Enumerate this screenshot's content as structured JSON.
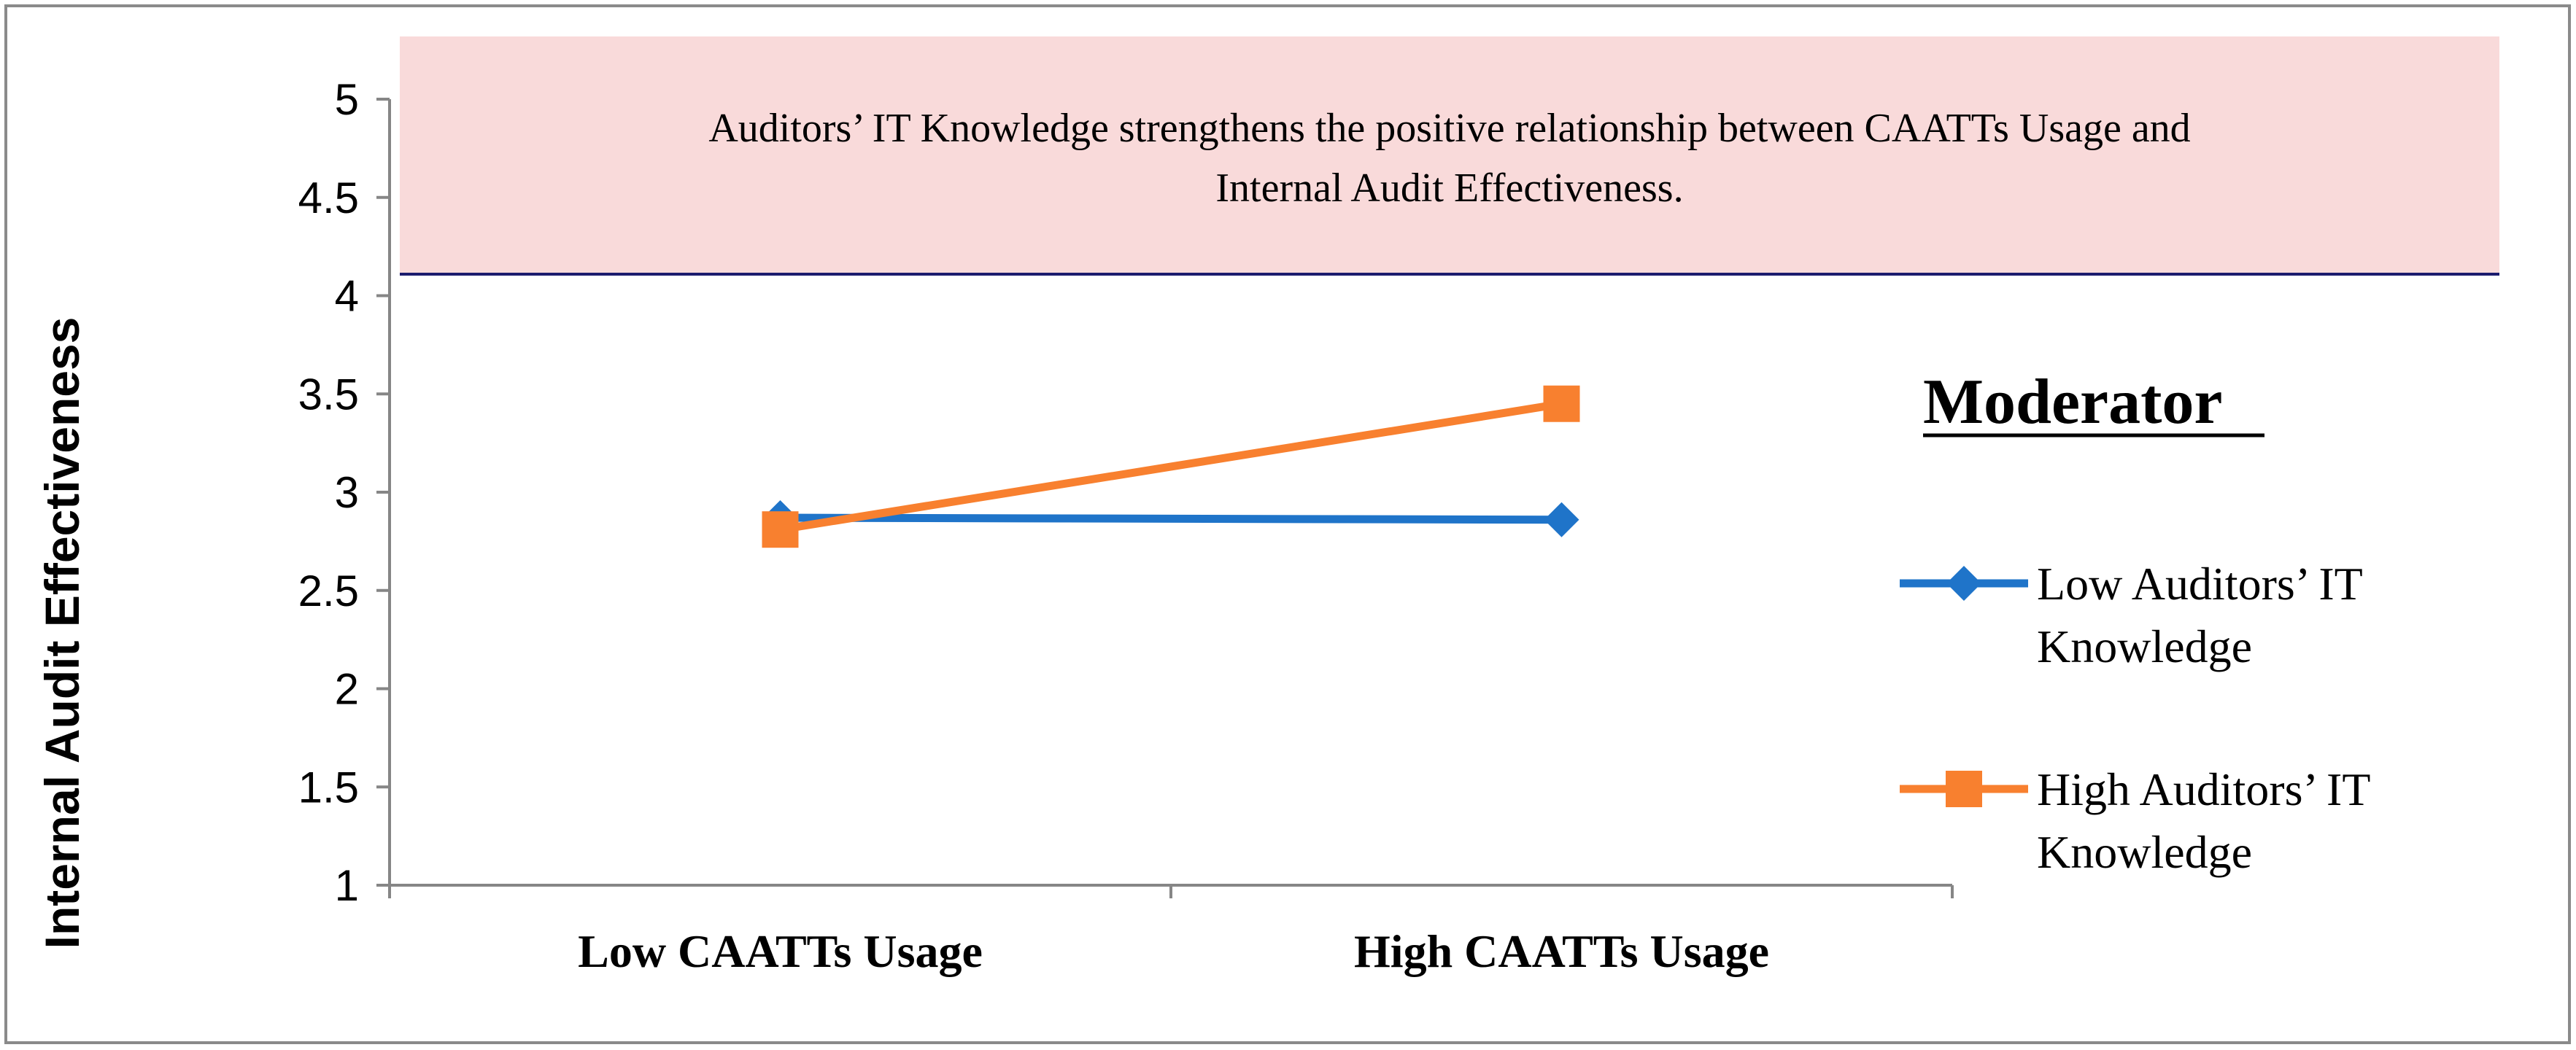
{
  "chart_data": {
    "type": "line",
    "title": "",
    "xlabel": "",
    "ylabel": "Internal Audit Effectiveness",
    "categories": [
      "Low CAATTs Usage",
      "High CAATTs Usage"
    ],
    "ylim": [
      1,
      5
    ],
    "yticks": [
      "1",
      "1.5",
      "2",
      "2.5",
      "3",
      "3.5",
      "4",
      "4.5",
      "5"
    ],
    "grid": false,
    "legend": {
      "title": "Moderator",
      "placement": "right",
      "entries": [
        [
          "Low Auditors’ IT",
          "Knowledge"
        ],
        [
          "High Auditors’ IT",
          "Knowledge"
        ]
      ]
    },
    "series": [
      {
        "name": "Low Auditors’ IT Knowledge",
        "values": [
          2.87,
          2.86
        ],
        "color": "#1F74C9",
        "marker": "diamond"
      },
      {
        "name": "High Auditors’ IT Knowledge",
        "values": [
          2.81,
          3.45
        ],
        "color": "#F8802F",
        "marker": "square"
      }
    ],
    "annotation": {
      "lines": [
        "Auditors’ IT Knowledge  strengthens the positive relationship between CAATTs Usage  and",
        "Internal Audit Effectiveness."
      ],
      "background": "#F9DADA",
      "border": "#1C1C6E"
    }
  }
}
